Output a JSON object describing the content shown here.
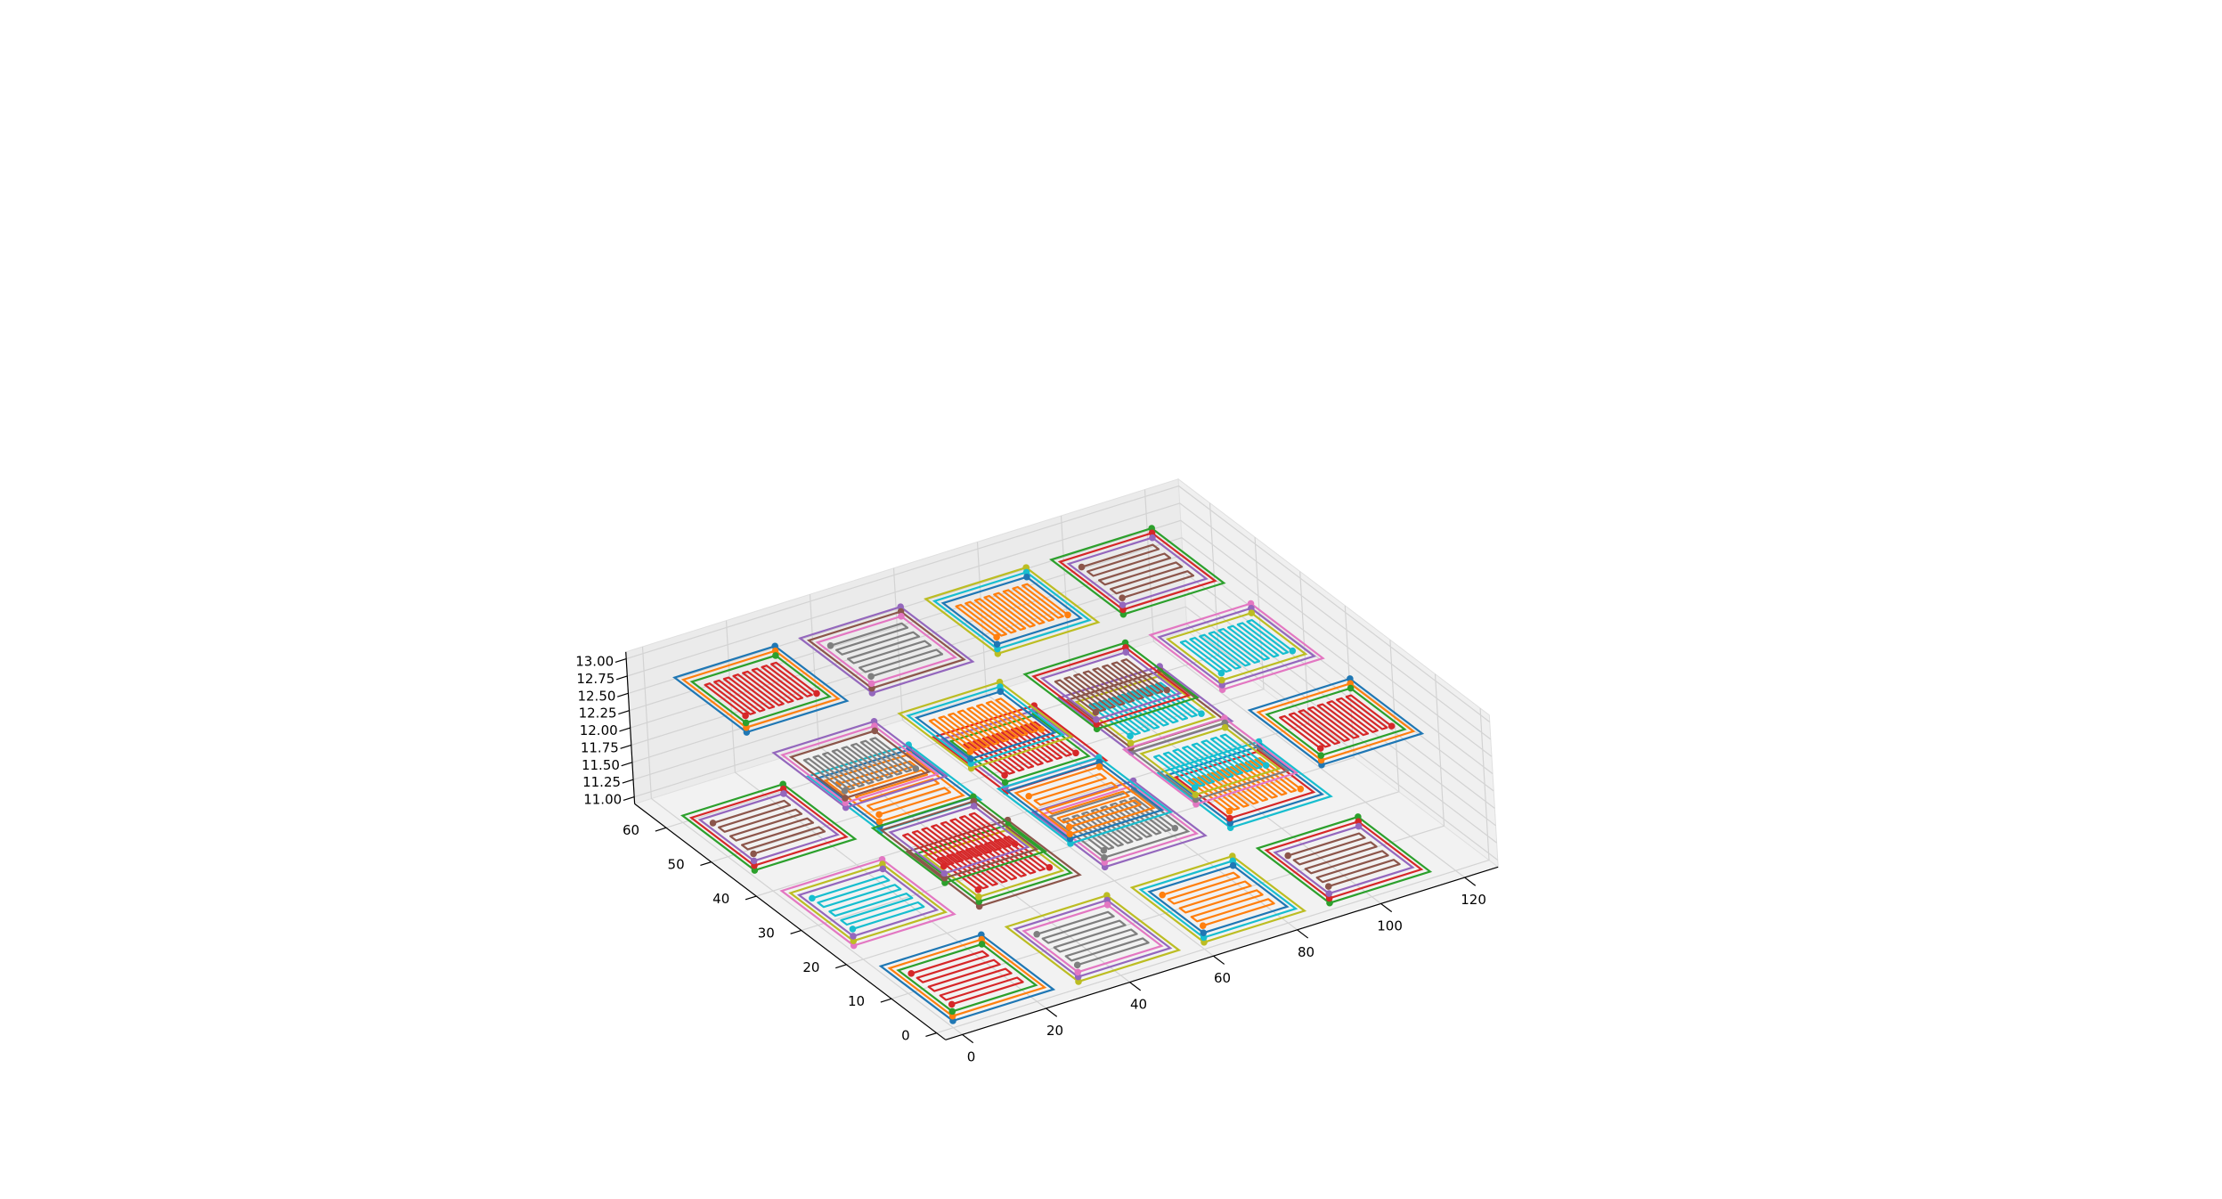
{
  "chart_data": {
    "type": "line",
    "projection": "3d",
    "title": "",
    "xlabel": "",
    "ylabel": "",
    "zlabel": "",
    "xlim": [
      -4,
      128
    ],
    "ylim": [
      -2,
      67
    ],
    "zlim": [
      10.9,
      13.1
    ],
    "grid": true,
    "x_ticks": [
      "0",
      "20",
      "40",
      "60",
      "80",
      "100",
      "120"
    ],
    "y_ticks": [
      "0",
      "10",
      "20",
      "30",
      "40",
      "50",
      "60"
    ],
    "z_ticks": [
      "11.00",
      "11.25",
      "11.50",
      "11.75",
      "12.00",
      "12.25",
      "12.50",
      "12.75",
      "13.00"
    ],
    "x_tick_values": [
      0,
      20,
      40,
      60,
      80,
      100,
      120
    ],
    "y_tick_values": [
      0,
      10,
      20,
      30,
      40,
      50,
      60
    ],
    "z_tick_values": [
      11.0,
      11.25,
      11.5,
      11.75,
      12.0,
      12.25,
      12.5,
      12.75,
      13.0
    ],
    "colors": [
      "#1f77b4",
      "#ff7f0e",
      "#2ca02c",
      "#d62728",
      "#9467bd",
      "#8c564b",
      "#e377c2",
      "#7f7f7f",
      "#bcbd22",
      "#17becf"
    ],
    "series": [
      {
        "layer": "bottom",
        "z": 11.0,
        "x": [
          0,
          24
        ],
        "y": [
          0,
          16
        ],
        "ring_colors": [
          "#1f77b4",
          "#ff7f0e",
          "#2ca02c"
        ],
        "meander_color": "#d62728",
        "meander_direction": "x",
        "meander_count": 8
      },
      {
        "layer": "bottom",
        "z": 11.0,
        "x": [
          30,
          54
        ],
        "y": [
          0,
          16
        ],
        "ring_colors": [
          "#bcbd22",
          "#9467bd",
          "#e377c2"
        ],
        "meander_color": "#7f7f7f",
        "meander_direction": "x",
        "meander_count": 8
      },
      {
        "layer": "bottom",
        "z": 11.0,
        "x": [
          60,
          84
        ],
        "y": [
          0,
          16
        ],
        "ring_colors": [
          "#bcbd22",
          "#17becf",
          "#1f77b4"
        ],
        "meander_color": "#ff7f0e",
        "meander_direction": "x",
        "meander_count": 8
      },
      {
        "layer": "bottom",
        "z": 11.0,
        "x": [
          90,
          114
        ],
        "y": [
          0,
          16
        ],
        "ring_colors": [
          "#2ca02c",
          "#d62728",
          "#9467bd"
        ],
        "meander_color": "#8c564b",
        "meander_direction": "x",
        "meander_count": 8
      },
      {
        "layer": "bottom",
        "z": 11.0,
        "x": [
          0,
          24
        ],
        "y": [
          22,
          38
        ],
        "ring_colors": [
          "#e377c2",
          "#bcbd22",
          "#9467bd"
        ],
        "meander_color": "#17becf",
        "meander_direction": "x",
        "meander_count": 8
      },
      {
        "layer": "bottom",
        "z": 11.0,
        "x": [
          30,
          54
        ],
        "y": [
          22,
          38
        ],
        "ring_colors": [
          "#8c564b",
          "#2ca02c",
          "#bcbd22"
        ],
        "meander_color": "#d62728",
        "meander_direction": "y",
        "meander_count": 16
      },
      {
        "layer": "bottom",
        "z": 11.0,
        "x": [
          60,
          84
        ],
        "y": [
          22,
          38
        ],
        "ring_colors": [
          "#9467bd",
          "#e377c2",
          "#7f7f7f"
        ],
        "meander_color": "#7f7f7f",
        "meander_direction": "y",
        "meander_count": 16
      },
      {
        "layer": "bottom",
        "z": 11.0,
        "x": [
          90,
          114
        ],
        "y": [
          22,
          38
        ],
        "ring_colors": [
          "#17becf",
          "#1f77b4",
          "#d62728"
        ],
        "meander_color": "#ff7f0e",
        "meander_direction": "y",
        "meander_count": 16
      },
      {
        "layer": "bottom",
        "z": 11.0,
        "x": [
          0,
          24
        ],
        "y": [
          44,
          60
        ],
        "ring_colors": [
          "#2ca02c",
          "#d62728",
          "#9467bd"
        ],
        "meander_color": "#8c564b",
        "meander_direction": "x",
        "meander_count": 8
      },
      {
        "layer": "bottom",
        "z": 11.0,
        "x": [
          30,
          54
        ],
        "y": [
          44,
          60
        ],
        "ring_colors": [
          "#17becf",
          "#1f77b4",
          "#ff7f0e"
        ],
        "meander_color": "#ff7f0e",
        "meander_direction": "x",
        "meander_count": 8
      },
      {
        "layer": "bottom",
        "z": 11.0,
        "x": [
          60,
          84
        ],
        "y": [
          44,
          60
        ],
        "ring_colors": [
          "#d62728",
          "#9467bd",
          "#2ca02c"
        ],
        "meander_color": "#d62728",
        "meander_direction": "y",
        "meander_count": 16
      },
      {
        "layer": "bottom",
        "z": 11.0,
        "x": [
          90,
          114
        ],
        "y": [
          44,
          60
        ],
        "ring_colors": [
          "#9467bd",
          "#8c564b",
          "#bcbd22"
        ],
        "meander_color": "#17becf",
        "meander_direction": "y",
        "meander_count": 16
      },
      {
        "layer": "top",
        "z": 13.0,
        "x": [
          0,
          24
        ],
        "y": [
          44,
          60
        ],
        "ring_colors": [
          "#1f77b4",
          "#ff7f0e",
          "#2ca02c"
        ],
        "meander_color": "#d62728",
        "meander_direction": "y",
        "meander_count": 16
      },
      {
        "layer": "top",
        "z": 13.0,
        "x": [
          30,
          54
        ],
        "y": [
          44,
          60
        ],
        "ring_colors": [
          "#9467bd",
          "#8c564b",
          "#e377c2"
        ],
        "meander_color": "#7f7f7f",
        "meander_direction": "x",
        "meander_count": 8
      },
      {
        "layer": "top",
        "z": 13.0,
        "x": [
          60,
          84
        ],
        "y": [
          44,
          60
        ],
        "ring_colors": [
          "#bcbd22",
          "#17becf",
          "#1f77b4"
        ],
        "meander_color": "#ff7f0e",
        "meander_direction": "y",
        "meander_count": 16
      },
      {
        "layer": "top",
        "z": 13.0,
        "x": [
          90,
          114
        ],
        "y": [
          44,
          60
        ],
        "ring_colors": [
          "#2ca02c",
          "#d62728",
          "#9467bd"
        ],
        "meander_color": "#8c564b",
        "meander_direction": "x",
        "meander_count": 8
      },
      {
        "layer": "top",
        "z": 13.0,
        "x": [
          0,
          24
        ],
        "y": [
          22,
          38
        ],
        "ring_colors": [
          "#9467bd",
          "#e377c2",
          "#8c564b"
        ],
        "meander_color": "#7f7f7f",
        "meander_direction": "y",
        "meander_count": 16
      },
      {
        "layer": "top",
        "z": 13.0,
        "x": [
          30,
          54
        ],
        "y": [
          22,
          38
        ],
        "ring_colors": [
          "#bcbd22",
          "#17becf",
          "#1f77b4"
        ],
        "meander_color": "#ff7f0e",
        "meander_direction": "y",
        "meander_count": 16
      },
      {
        "layer": "top",
        "z": 13.0,
        "x": [
          60,
          84
        ],
        "y": [
          22,
          38
        ],
        "ring_colors": [
          "#2ca02c",
          "#d62728",
          "#9467bd"
        ],
        "meander_color": "#8c564b",
        "meander_direction": "y",
        "meander_count": 16
      },
      {
        "layer": "top",
        "z": 13.0,
        "x": [
          90,
          114
        ],
        "y": [
          22,
          38
        ],
        "ring_colors": [
          "#e377c2",
          "#9467bd",
          "#bcbd22"
        ],
        "meander_color": "#17becf",
        "meander_direction": "y",
        "meander_count": 16
      },
      {
        "layer": "top",
        "z": 13.0,
        "x": [
          0,
          24
        ],
        "y": [
          0,
          16
        ],
        "ring_colors": [
          "#2ca02c",
          "#8c564b",
          "#9467bd"
        ],
        "meander_color": "#d62728",
        "meander_direction": "y",
        "meander_count": 16
      },
      {
        "layer": "top",
        "z": 13.0,
        "x": [
          30,
          54
        ],
        "y": [
          0,
          16
        ],
        "ring_colors": [
          "#17becf",
          "#1f77b4",
          "#ff7f0e"
        ],
        "meander_color": "#ff7f0e",
        "meander_direction": "x",
        "meander_count": 8
      },
      {
        "layer": "top",
        "z": 13.0,
        "x": [
          60,
          84
        ],
        "y": [
          0,
          16
        ],
        "ring_colors": [
          "#e377c2",
          "#7f7f7f",
          "#bcbd22"
        ],
        "meander_color": "#17becf",
        "meander_direction": "y",
        "meander_count": 16
      },
      {
        "layer": "top",
        "z": 13.0,
        "x": [
          90,
          114
        ],
        "y": [
          0,
          16
        ],
        "ring_colors": [
          "#1f77b4",
          "#ff7f0e",
          "#2ca02c"
        ],
        "meander_color": "#d62728",
        "meander_direction": "y",
        "meander_count": 16
      }
    ]
  }
}
